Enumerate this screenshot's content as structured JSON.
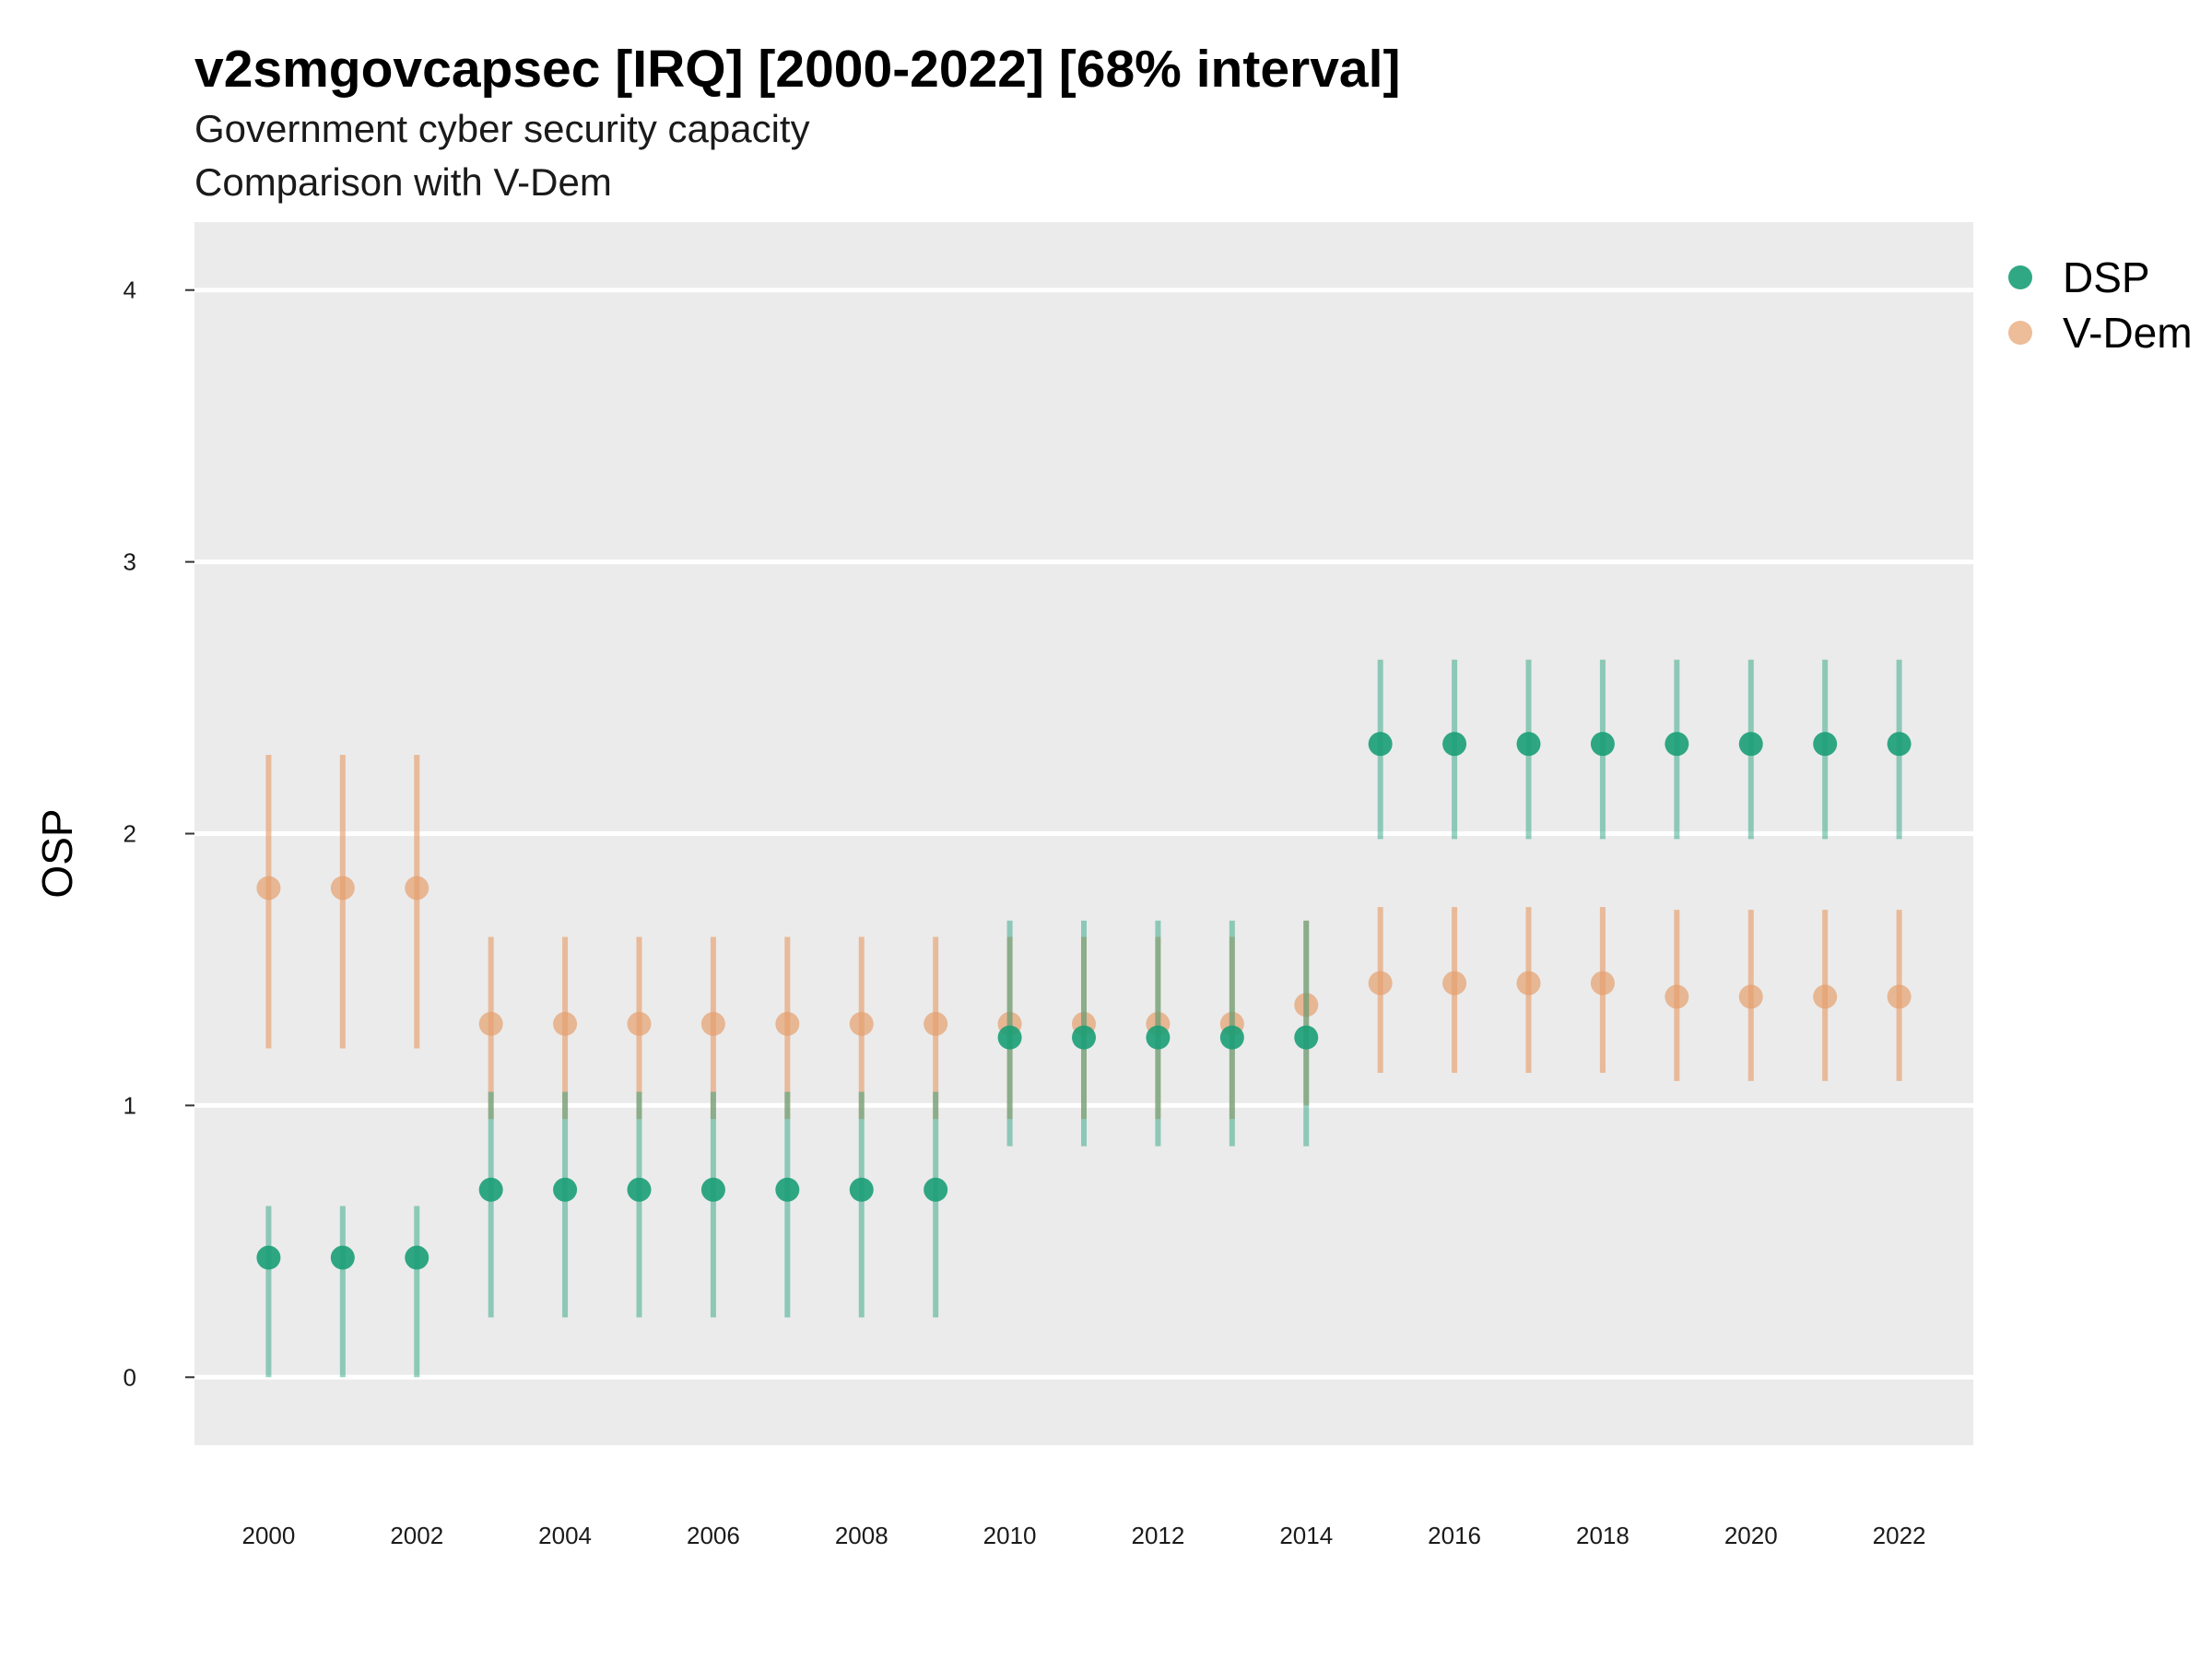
{
  "chart_data": {
    "type": "scatter",
    "title": "v2smgovcapsec [IRQ] [2000-2022] [68% interval]",
    "subtitle_lines": [
      "Government cyber security capacity",
      "Comparison with V-Dem"
    ],
    "xlabel": "",
    "ylabel": "OSP",
    "ylim": [
      -0.25,
      4.25
    ],
    "xlim": [
      1999,
      2023
    ],
    "y_ticks": [
      0,
      1,
      2,
      3,
      4
    ],
    "x_ticks": [
      2000,
      2002,
      2004,
      2006,
      2008,
      2010,
      2012,
      2014,
      2016,
      2018,
      2020,
      2022
    ],
    "grid": true,
    "legend_position": "top-right",
    "x": [
      2000,
      2001,
      2002,
      2003,
      2004,
      2005,
      2006,
      2007,
      2008,
      2009,
      2010,
      2011,
      2012,
      2013,
      2014,
      2015,
      2016,
      2017,
      2018,
      2019,
      2020,
      2021,
      2022
    ],
    "series": [
      {
        "name": "V-Dem",
        "color": "#E6A06E",
        "values": [
          1.8,
          1.8,
          1.8,
          1.3,
          1.3,
          1.3,
          1.3,
          1.3,
          1.3,
          1.3,
          1.3,
          1.3,
          1.3,
          1.3,
          1.37,
          1.45,
          1.45,
          1.45,
          1.45,
          1.4,
          1.4,
          1.4,
          1.4
        ],
        "lower": [
          1.21,
          1.21,
          1.21,
          0.95,
          0.95,
          0.95,
          0.95,
          0.95,
          0.95,
          0.95,
          0.95,
          0.95,
          0.95,
          0.95,
          1.0,
          1.12,
          1.12,
          1.12,
          1.12,
          1.09,
          1.09,
          1.09,
          1.09
        ],
        "upper": [
          2.29,
          2.29,
          2.29,
          1.62,
          1.62,
          1.62,
          1.62,
          1.62,
          1.62,
          1.62,
          1.62,
          1.62,
          1.62,
          1.62,
          1.68,
          1.73,
          1.73,
          1.73,
          1.73,
          1.72,
          1.72,
          1.72,
          1.72
        ]
      },
      {
        "name": "DSP",
        "color": "#1B9E77",
        "values": [
          0.44,
          0.44,
          0.44,
          0.69,
          0.69,
          0.69,
          0.69,
          0.69,
          0.69,
          0.69,
          1.25,
          1.25,
          1.25,
          1.25,
          1.25,
          2.33,
          2.33,
          2.33,
          2.33,
          2.33,
          2.33,
          2.33,
          2.33
        ],
        "lower": [
          0.0,
          0.0,
          0.0,
          0.22,
          0.22,
          0.22,
          0.22,
          0.22,
          0.22,
          0.22,
          0.85,
          0.85,
          0.85,
          0.85,
          0.85,
          1.98,
          1.98,
          1.98,
          1.98,
          1.98,
          1.98,
          1.98,
          1.98
        ],
        "upper": [
          0.63,
          0.63,
          0.63,
          1.05,
          1.05,
          1.05,
          1.05,
          1.05,
          1.05,
          1.05,
          1.68,
          1.68,
          1.68,
          1.68,
          1.68,
          2.64,
          2.64,
          2.64,
          2.64,
          2.64,
          2.64,
          2.64,
          2.64
        ]
      }
    ],
    "legend": [
      {
        "label": "DSP",
        "color": "#1B9E77"
      },
      {
        "label": "V-Dem",
        "color": "#E6A06E"
      }
    ]
  }
}
